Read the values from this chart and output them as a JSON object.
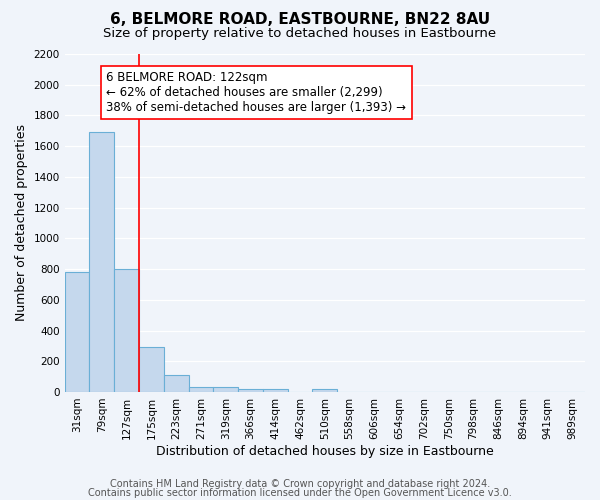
{
  "title": "6, BELMORE ROAD, EASTBOURNE, BN22 8AU",
  "subtitle": "Size of property relative to detached houses in Eastbourne",
  "xlabel": "Distribution of detached houses by size in Eastbourne",
  "ylabel": "Number of detached properties",
  "bin_labels": [
    "31sqm",
    "79sqm",
    "127sqm",
    "175sqm",
    "223sqm",
    "271sqm",
    "319sqm",
    "366sqm",
    "414sqm",
    "462sqm",
    "510sqm",
    "558sqm",
    "606sqm",
    "654sqm",
    "702sqm",
    "750sqm",
    "798sqm",
    "846sqm",
    "894sqm",
    "941sqm",
    "989sqm"
  ],
  "bar_values": [
    780,
    1690,
    800,
    295,
    110,
    35,
    35,
    20,
    20,
    0,
    20,
    0,
    0,
    0,
    0,
    0,
    0,
    0,
    0,
    0,
    0
  ],
  "bar_color": "#c5d8ed",
  "bar_edge_color": "#6aafd6",
  "bar_edge_width": 0.8,
  "marker_bin_index": 2,
  "marker_color": "red",
  "marker_linewidth": 1.2,
  "annotation_line1": "6 BELMORE ROAD: 122sqm",
  "annotation_line2": "← 62% of detached houses are smaller (2,299)",
  "annotation_line3": "38% of semi-detached houses are larger (1,393) →",
  "ylim": [
    0,
    2200
  ],
  "yticks": [
    0,
    200,
    400,
    600,
    800,
    1000,
    1200,
    1400,
    1600,
    1800,
    2000,
    2200
  ],
  "footnote1": "Contains HM Land Registry data © Crown copyright and database right 2024.",
  "footnote2": "Contains public sector information licensed under the Open Government Licence v3.0.",
  "bg_color": "#f0f4fa",
  "grid_color": "#ffffff",
  "title_fontsize": 11,
  "subtitle_fontsize": 9.5,
  "axis_label_fontsize": 9,
  "tick_fontsize": 7.5,
  "annotation_fontsize": 8.5,
  "footnote_fontsize": 7
}
